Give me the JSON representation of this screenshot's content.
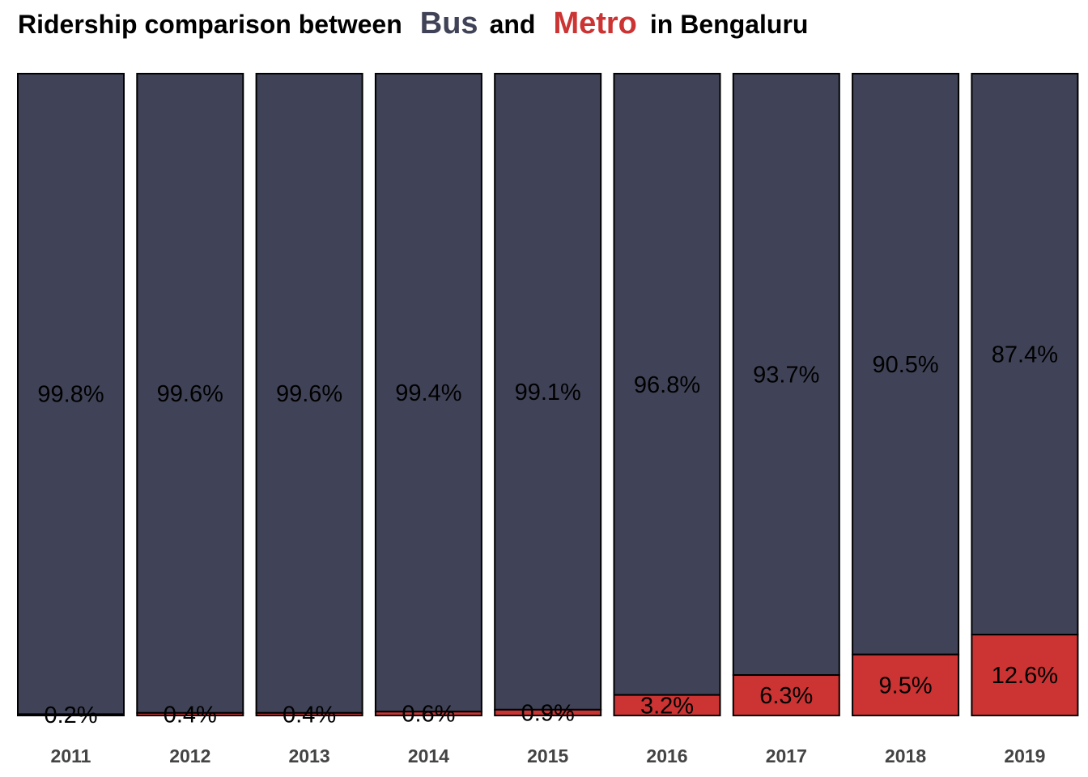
{
  "title": {
    "prefix": "Ridership comparison between",
    "bus_word": "Bus",
    "middle": "and",
    "metro_word": "Metro",
    "suffix": "in Bengaluru"
  },
  "colors": {
    "bus": "#404357",
    "metro": "#cc3333",
    "outline": "#000000",
    "tick_text": "#444444"
  },
  "chart_data": {
    "type": "bar",
    "stacked": true,
    "percent": true,
    "title": "Ridership comparison between Bus and Metro in Bengaluru",
    "categories": [
      "2011",
      "2012",
      "2013",
      "2014",
      "2015",
      "2016",
      "2017",
      "2018",
      "2019"
    ],
    "series": [
      {
        "name": "Bus",
        "values": [
          99.8,
          99.6,
          99.6,
          99.4,
          99.1,
          96.8,
          93.7,
          90.5,
          87.4
        ],
        "labels": [
          "99.8%",
          "99.6%",
          "99.6%",
          "99.4%",
          "99.1%",
          "96.8%",
          "93.7%",
          "90.5%",
          "87.4%"
        ]
      },
      {
        "name": "Metro",
        "values": [
          0.2,
          0.4,
          0.4,
          0.6,
          0.9,
          3.2,
          6.3,
          9.5,
          12.6
        ],
        "labels": [
          "0.2%",
          "0.4%",
          "0.4%",
          "0.6%",
          "0.9%",
          "3.2%",
          "6.3%",
          "9.5%",
          "12.6%"
        ]
      }
    ],
    "xlabel": "",
    "ylabel": "",
    "ylim": [
      0,
      100
    ],
    "grid": false,
    "legend": "none"
  }
}
